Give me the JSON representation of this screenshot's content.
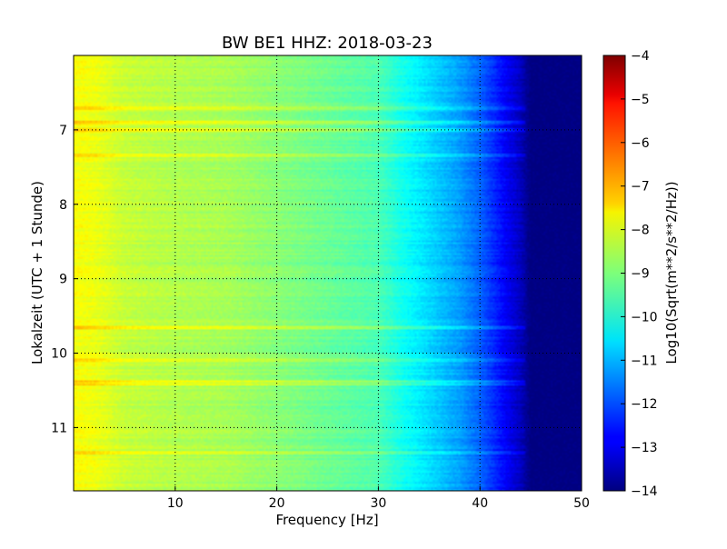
{
  "chart_data": {
    "type": "heatmap",
    "title": "BW BE1 HHZ: 2018-03-23",
    "xlabel": "Frequency [Hz]",
    "ylabel": "Lokalzeit (UTC + 1 Stunde)",
    "xlim": [
      0,
      50
    ],
    "ylim": [
      11.85,
      6.0
    ],
    "y_inverted": true,
    "xticks": [
      10,
      20,
      30,
      40,
      50
    ],
    "yticks": [
      7,
      8,
      9,
      10,
      11
    ],
    "grid": true,
    "colormap": "jet",
    "colorbar": {
      "label": "Log10(Sqrt(m**2/s**2/Hz))",
      "range": [
        -14,
        -4
      ],
      "ticks": [
        -4,
        -5,
        -6,
        -7,
        -8,
        -9,
        -10,
        -11,
        -12,
        -13,
        -14
      ]
    },
    "spectral_profile": {
      "frequencies": [
        0,
        2,
        5,
        10,
        15,
        20,
        25,
        30,
        32,
        34,
        36,
        38,
        40,
        42,
        44,
        45,
        50
      ],
      "log10_amplitude": [
        -7.8,
        -7.9,
        -8.3,
        -8.5,
        -8.6,
        -8.9,
        -9.2,
        -9.5,
        -10.0,
        -10.4,
        -10.8,
        -11.2,
        -11.8,
        -12.6,
        -13.4,
        -14.0,
        -14.0
      ]
    },
    "bright_bands_hours": [
      6.7,
      6.9,
      7.0,
      7.33,
      9.65,
      10.1,
      10.4,
      11.33
    ]
  }
}
